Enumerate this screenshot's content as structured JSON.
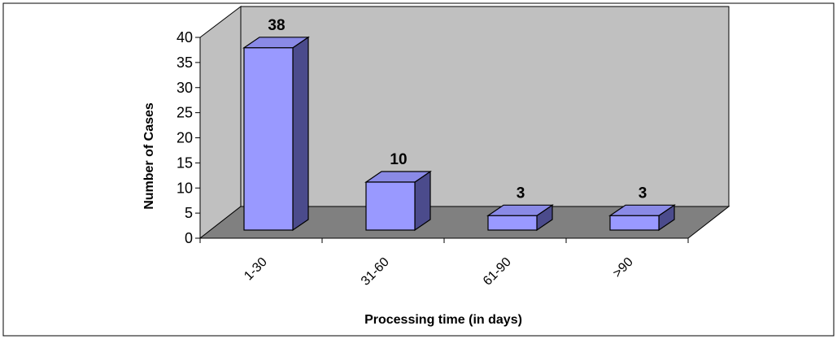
{
  "chart_data": {
    "type": "bar",
    "categories": [
      "1-30",
      "31-60",
      "61-90",
      ">90"
    ],
    "values": [
      38,
      10,
      3,
      3
    ],
    "data_labels": [
      "38",
      "10",
      "3",
      "3"
    ],
    "xlabel": "Processing time (in days)",
    "ylabel": "Number of Cases",
    "ylim": [
      0,
      40
    ],
    "yticks": [
      0,
      5,
      10,
      15,
      20,
      25,
      30,
      35,
      40
    ],
    "grid": false,
    "legend": "none",
    "style": "3d-column",
    "colors": {
      "bar_front": "#9999ff",
      "bar_side": "#4b4b8c",
      "bar_top": "#8a8ae6",
      "back_wall": "#c0c0c0",
      "floor": "#808080",
      "side_wall": "#c0c0c0"
    }
  }
}
